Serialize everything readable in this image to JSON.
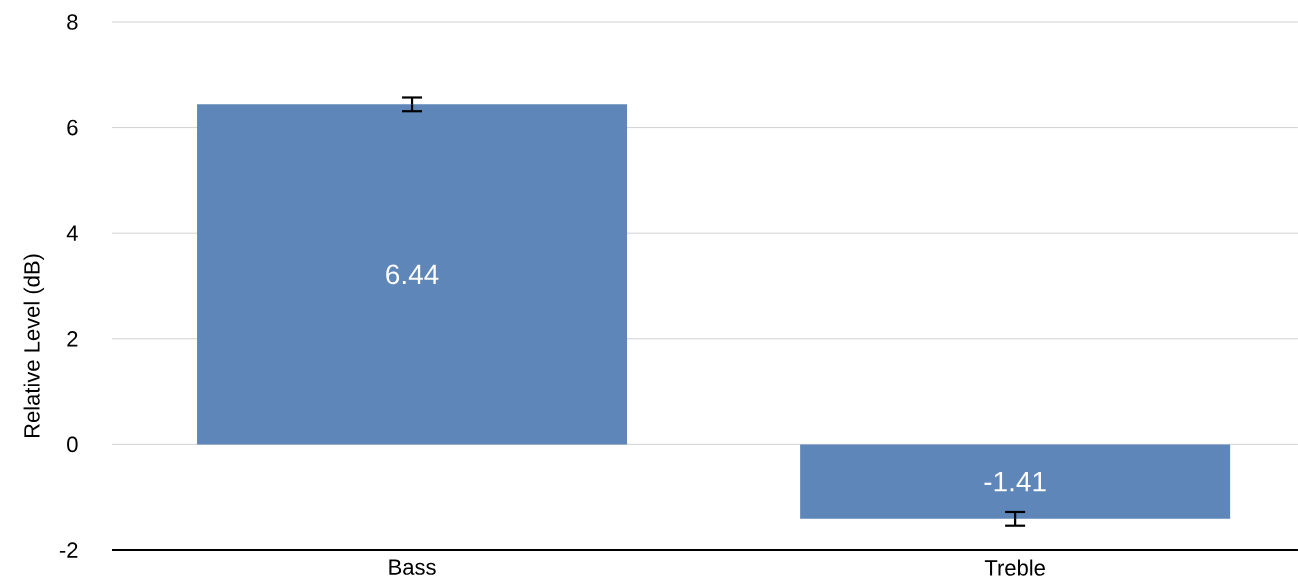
{
  "chart_data": {
    "type": "bar",
    "ylabel": "Relative Level (dB)",
    "categories": [
      "Bass",
      "Treble"
    ],
    "values": [
      6.44,
      -1.41
    ],
    "errors": [
      0.13,
      0.13
    ],
    "color": "#5e86b8",
    "ylim": [
      -2,
      8
    ],
    "yticks": [
      -2,
      0,
      2,
      4,
      6,
      8
    ],
    "grid": "y",
    "data_labels": true
  }
}
